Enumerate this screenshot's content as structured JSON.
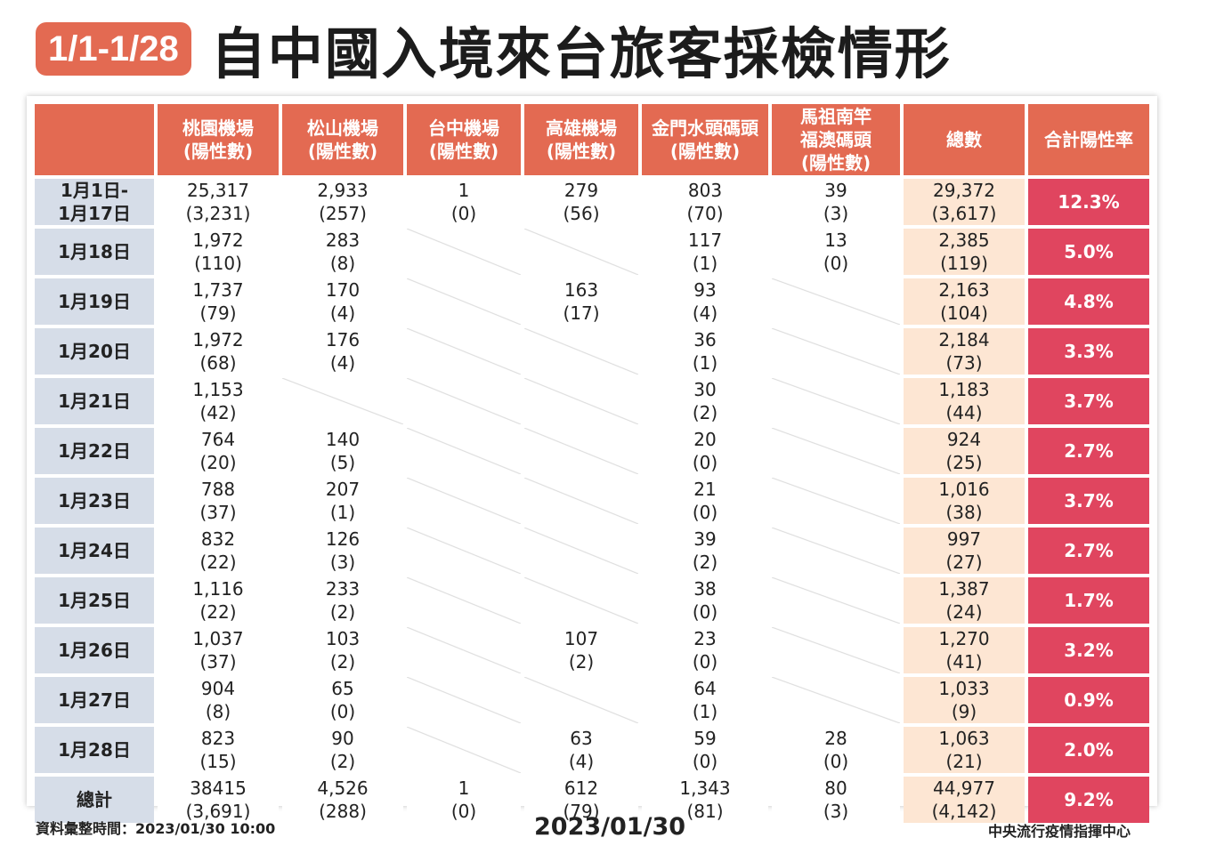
{
  "title": {
    "date_range": "1/1-1/28",
    "main": "自中國入境來台旅客採檢情形"
  },
  "table": {
    "headers": [
      "",
      "桃園機場\n(陽性數)",
      "松山機場\n(陽性數)",
      "台中機場\n(陽性數)",
      "高雄機場\n(陽性數)",
      "金門水頭碼頭\n(陽性數)",
      "馬祖南竿\n福澳碼頭\n(陽性數)",
      "總數",
      "合計陽性率"
    ],
    "rows": [
      {
        "date": "1月1日-\n1月17日",
        "cells": [
          "25,317\n(3,231)",
          "2,933\n(257)",
          "1\n(0)",
          "279\n(56)",
          "803\n(70)",
          "39\n(3)"
        ],
        "total": "29,372\n(3,617)",
        "rate": "12.3%"
      },
      {
        "date": "1月18日",
        "cells": [
          "1,972\n(110)",
          "283\n(8)",
          "",
          "",
          "117\n(1)",
          "13\n(0)"
        ],
        "total": "2,385\n(119)",
        "rate": "5.0%"
      },
      {
        "date": "1月19日",
        "cells": [
          "1,737\n(79)",
          "170\n(4)",
          "",
          "163\n(17)",
          "93\n(4)",
          ""
        ],
        "total": "2,163\n(104)",
        "rate": "4.8%"
      },
      {
        "date": "1月20日",
        "cells": [
          "1,972\n(68)",
          "176\n(4)",
          "",
          "",
          "36\n(1)",
          ""
        ],
        "total": "2,184\n(73)",
        "rate": "3.3%"
      },
      {
        "date": "1月21日",
        "cells": [
          "1,153\n(42)",
          "",
          "",
          "",
          "30\n(2)",
          ""
        ],
        "total": "1,183\n(44)",
        "rate": "3.7%"
      },
      {
        "date": "1月22日",
        "cells": [
          "764\n(20)",
          "140\n(5)",
          "",
          "",
          "20\n(0)",
          ""
        ],
        "total": "924\n(25)",
        "rate": "2.7%"
      },
      {
        "date": "1月23日",
        "cells": [
          "788\n(37)",
          "207\n(1)",
          "",
          "",
          "21\n(0)",
          ""
        ],
        "total": "1,016\n(38)",
        "rate": "3.7%"
      },
      {
        "date": "1月24日",
        "cells": [
          "832\n(22)",
          "126\n(3)",
          "",
          "",
          "39\n(2)",
          ""
        ],
        "total": "997\n(27)",
        "rate": "2.7%"
      },
      {
        "date": "1月25日",
        "cells": [
          "1,116\n(22)",
          "233\n(2)",
          "",
          "",
          "38\n(0)",
          ""
        ],
        "total": "1,387\n(24)",
        "rate": "1.7%"
      },
      {
        "date": "1月26日",
        "cells": [
          "1,037\n(37)",
          "103\n(2)",
          "",
          "107\n(2)",
          "23\n(0)",
          ""
        ],
        "total": "1,270\n(41)",
        "rate": "3.2%"
      },
      {
        "date": "1月27日",
        "cells": [
          "904\n(8)",
          "65\n(0)",
          "",
          "",
          "64\n(1)",
          ""
        ],
        "total": "1,033\n(9)",
        "rate": "0.9%"
      },
      {
        "date": "1月28日",
        "cells": [
          "823\n(15)",
          "90\n(2)",
          "",
          "63\n(4)",
          "59\n(0)",
          "28\n(0)"
        ],
        "total": "1,063\n(21)",
        "rate": "2.0%"
      },
      {
        "date": "總計",
        "cells": [
          "38415\n(3,691)",
          "4,526\n(288)",
          "1\n(0)",
          "612\n(79)",
          "1,343\n(81)",
          "80\n(3)"
        ],
        "total": "44,977\n(4,142)",
        "rate": "9.2%"
      }
    ]
  },
  "footer": {
    "compiled_time": "資料彙整時間：2023/01/30  10:00",
    "date": "2023/01/30",
    "source": "中央流行疫情指揮中心"
  },
  "colors": {
    "accent": "#e36a52",
    "rate": "#e0455f",
    "date_cell": "#d6dde8",
    "total_cell": "#fde6d3"
  }
}
